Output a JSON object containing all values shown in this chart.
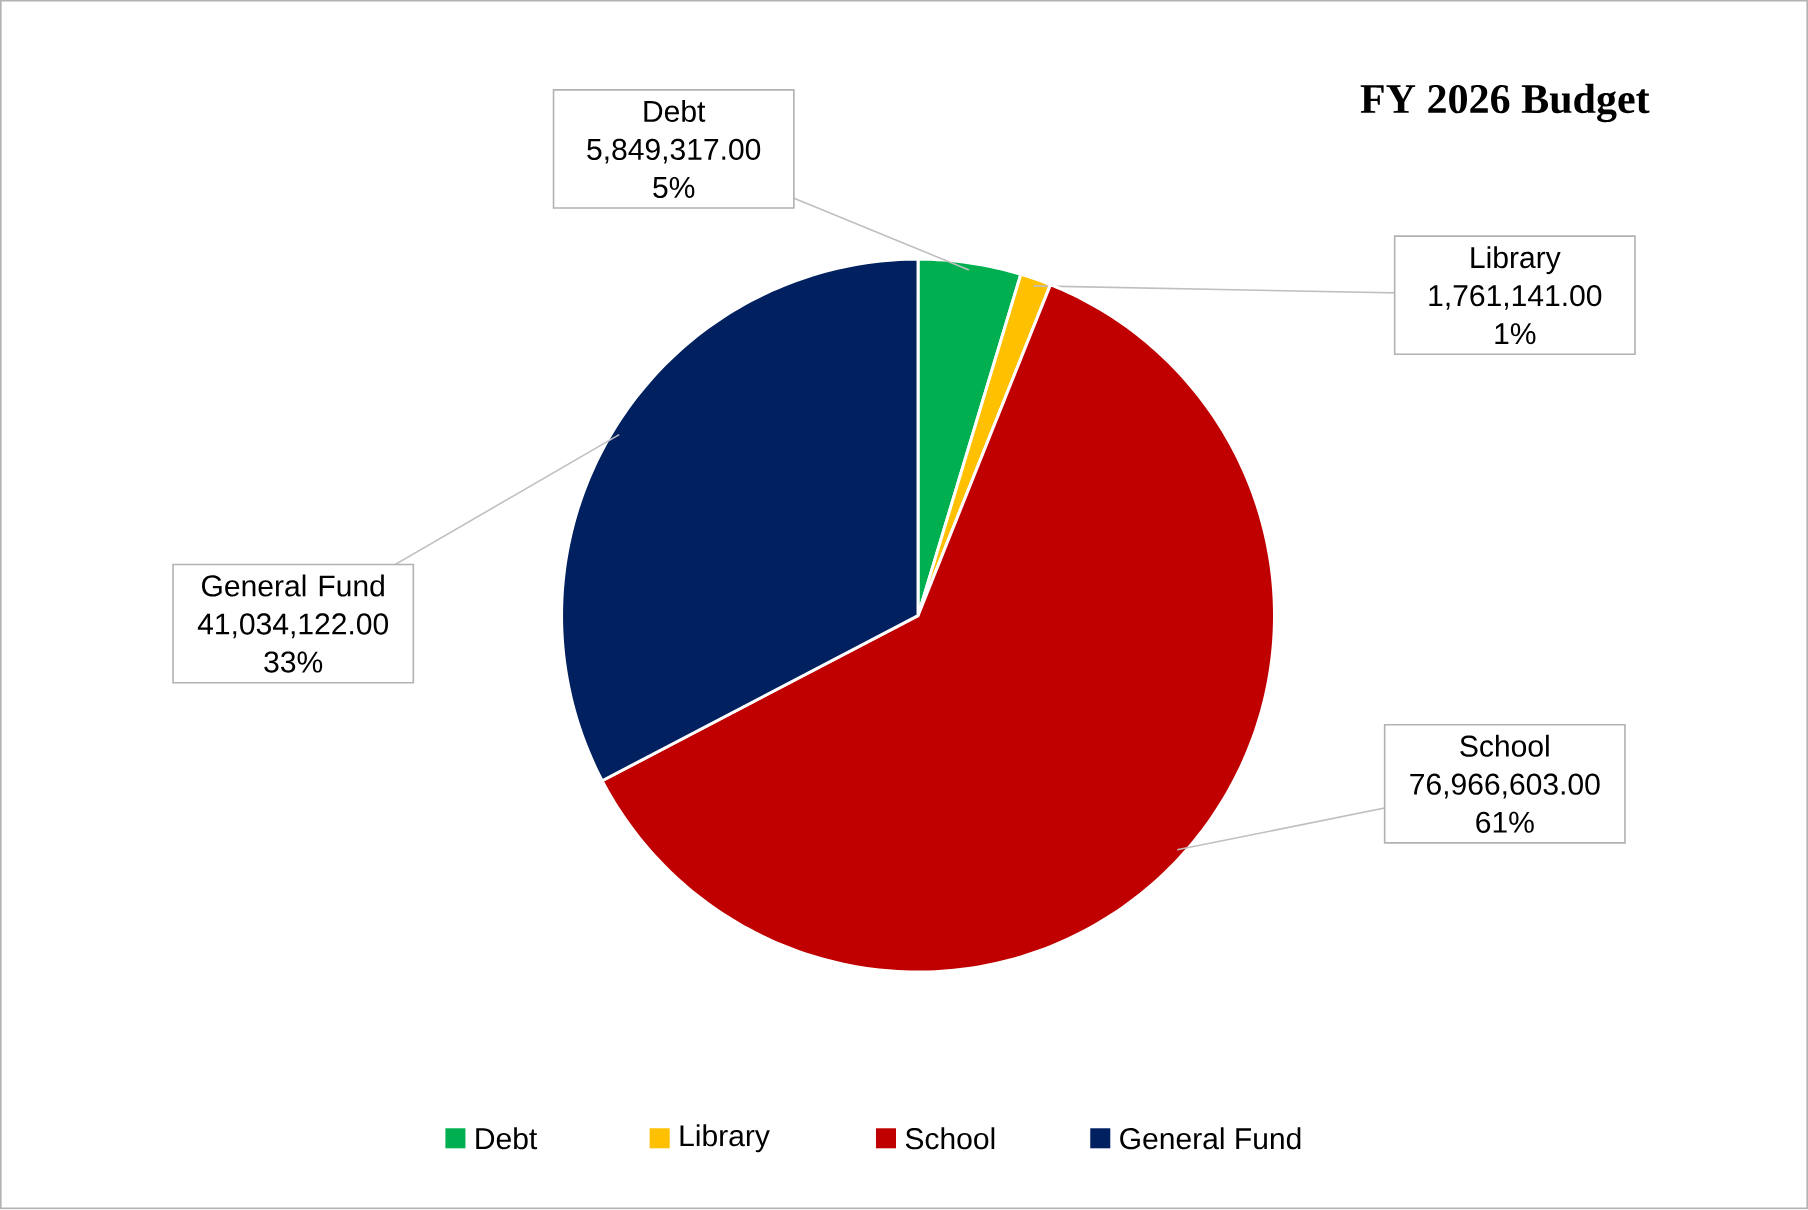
{
  "chart_data": {
    "type": "pie",
    "title": "FY 2026 Budget",
    "categories": [
      "Debt",
      "Library",
      "School",
      "General Fund"
    ],
    "values": [
      5849317.0,
      1761141.0,
      76966603.0,
      41034122.0
    ],
    "value_labels": [
      "5,849,317.00 5%",
      "1,761,141.00 1%",
      "76,966,603.00 61%",
      "41,034,122.00 33%"
    ],
    "colors": [
      "#00b050",
      "#ffc000",
      "#c00000",
      "#002060"
    ],
    "legend": "bottom"
  }
}
